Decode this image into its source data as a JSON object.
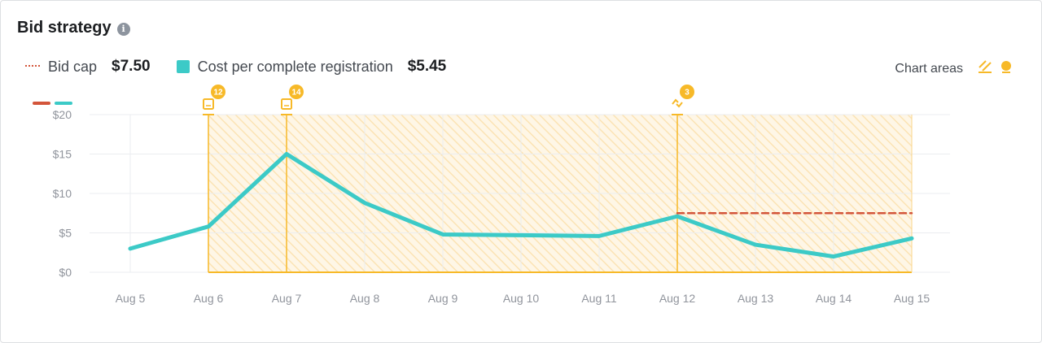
{
  "header": {
    "title": "Bid strategy",
    "info_icon": "info-icon"
  },
  "legend": {
    "bid_cap_label": "Bid cap",
    "bid_cap_value": "$7.50",
    "cost_label": "Cost per complete registration",
    "cost_value": "$5.45"
  },
  "chart_areas": {
    "label": "Chart areas",
    "icons": [
      "hatched-area-icon",
      "bulb-icon"
    ]
  },
  "colors": {
    "cost_line": "#3ccac7",
    "bid_cap_line": "#d3553a",
    "highlight": "#f7b928",
    "grid": "#ebedf0",
    "tick": "#90949c"
  },
  "chart_data": {
    "type": "line",
    "categories": [
      "Aug 5",
      "Aug 6",
      "Aug 7",
      "Aug 8",
      "Aug 9",
      "Aug 10",
      "Aug 11",
      "Aug 12",
      "Aug 13",
      "Aug 14",
      "Aug 15"
    ],
    "series": [
      {
        "name": "Cost per complete registration",
        "values": [
          3.0,
          5.8,
          15.0,
          8.8,
          4.8,
          4.7,
          4.6,
          7.1,
          3.5,
          2.0,
          4.3
        ]
      },
      {
        "name": "Bid cap",
        "values": [
          null,
          null,
          null,
          null,
          null,
          null,
          null,
          7.5,
          7.5,
          7.5,
          7.5
        ]
      }
    ],
    "y_ticks": [
      "$0",
      "$5",
      "$10",
      "$15",
      "$20"
    ],
    "ylim": [
      0,
      20
    ],
    "grid": true,
    "highlighted_area": {
      "from": "Aug 6",
      "to": "Aug 15"
    },
    "annotations": [
      {
        "at": "Aug 6",
        "count": "12",
        "icon": "ad-icon"
      },
      {
        "at": "Aug 7",
        "count": "14",
        "icon": "ad-icon"
      },
      {
        "at": "Aug 12",
        "count": "3",
        "icon": "bid-change-icon"
      }
    ]
  }
}
